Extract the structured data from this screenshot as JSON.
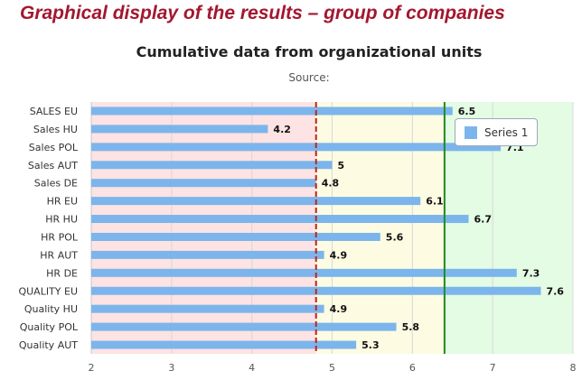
{
  "slide": {
    "title": "Graphical display of the results – group of companies"
  },
  "chart_data": {
    "type": "bar",
    "orientation": "horizontal",
    "title": "Cumulative data from organizational units",
    "subtitle": "Source:",
    "categories": [
      "SALES EU",
      "Sales HU",
      "Sales POL",
      "Sales AUT",
      "Sales DE",
      "HR EU",
      "HR HU",
      "HR POL",
      "HR AUT",
      "HR DE",
      "QUALITY EU",
      "Quality HU",
      "Quality POL",
      "Quality AUT"
    ],
    "series": [
      {
        "name": "Series 1",
        "values": [
          6.5,
          4.2,
          7.1,
          5,
          4.8,
          6.1,
          6.7,
          5.6,
          4.9,
          7.3,
          7.6,
          4.9,
          5.8,
          5.3
        ],
        "color": "#7cb5ec"
      }
    ],
    "data_labels": [
      "6.5",
      "4.2",
      "7.1",
      "5",
      "4.8",
      "6.1",
      "6.7",
      "5.6",
      "4.9",
      "7.3",
      "7.6",
      "4.9",
      "5.8",
      "5.3"
    ],
    "xlim": [
      2,
      8
    ],
    "xticks": [
      "2",
      "3",
      "4",
      "5",
      "6",
      "7",
      "8"
    ],
    "bands": [
      {
        "from": 2,
        "to": 4.8,
        "color": "#fde3e3"
      },
      {
        "from": 4.8,
        "to": 6.4,
        "color": "#fdfce2"
      },
      {
        "from": 6.4,
        "to": 8,
        "color": "#e4fbe4"
      }
    ],
    "plot_lines": [
      {
        "value": 4.8,
        "color": "#c0241c",
        "style": "dashed"
      },
      {
        "value": 6.4,
        "color": "#1f8a1f",
        "style": "solid"
      }
    ],
    "grid": true,
    "legend": {
      "position": "top-right",
      "entries": [
        "Series 1"
      ]
    }
  }
}
